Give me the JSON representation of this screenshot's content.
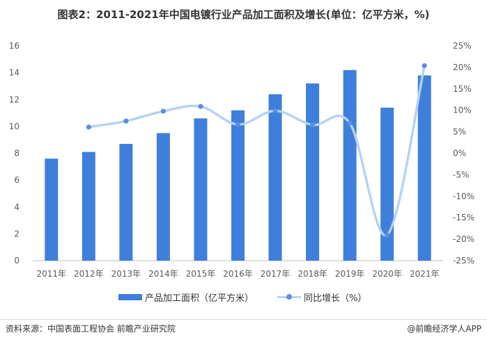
{
  "title": "图表2：2011-2021年中国电镀行业产品加工面积及增长(单位：亿平方米，%)",
  "chart_data": {
    "type": "bar+line",
    "categories": [
      "2011年",
      "2012年",
      "2013年",
      "2014年",
      "2015年",
      "2016年",
      "2017年",
      "2018年",
      "2019年",
      "2020年",
      "2021年"
    ],
    "series": [
      {
        "name": "产品加工面积（亿平方米）",
        "type": "bar",
        "axis": "left",
        "values": [
          7.6,
          8.1,
          8.7,
          9.5,
          10.6,
          11.2,
          12.4,
          13.2,
          14.2,
          11.4,
          13.8
        ]
      },
      {
        "name": "同比增长（%）",
        "type": "line",
        "axis": "right",
        "values": [
          null,
          6.1,
          7.5,
          9.8,
          10.9,
          6.7,
          9.9,
          6.6,
          7.0,
          -19.0,
          20.4
        ]
      }
    ],
    "y_left": {
      "ylim": [
        0,
        16
      ],
      "ticks": [
        "0",
        "2",
        "4",
        "6",
        "8",
        "10",
        "12",
        "14",
        "16"
      ]
    },
    "y_right": {
      "ylim": [
        -25,
        25
      ],
      "ticks": [
        "-25%",
        "-20%",
        "-15%",
        "-10%",
        "-5%",
        "0%",
        "5%",
        "10%",
        "15%",
        "20%",
        "25%"
      ]
    },
    "grid": false,
    "legend": "bottom",
    "colors": {
      "bar": "#3f7fdc",
      "line": "#b4d2f5",
      "marker": "#5b8fe0"
    }
  },
  "legend": {
    "bar_label": "产品加工面积（亿平方米）",
    "line_label": "同比增长（%）"
  },
  "footer": {
    "source": "资料来源：中国表面工程协会 前瞻产业研究院",
    "brand": "@前瞻经济学人APP"
  }
}
